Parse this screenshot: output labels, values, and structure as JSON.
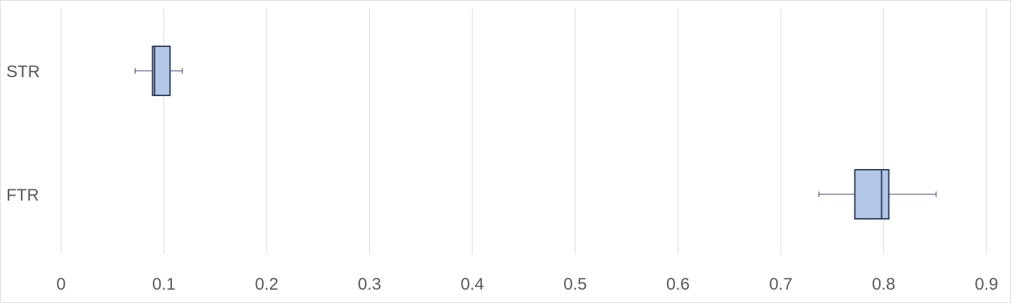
{
  "chart_data": {
    "type": "boxplot",
    "orientation": "horizontal",
    "title": "",
    "xlabel": "",
    "ylabel": "",
    "xlim": [
      0,
      0.9
    ],
    "x_ticks": [
      "0",
      "0.1",
      "0.2",
      "0.3",
      "0.4",
      "0.5",
      "0.6",
      "0.7",
      "0.8",
      "0.9"
    ],
    "grid": "vertical",
    "legend": "none",
    "colors": {
      "box_fill": "#b4c7e7",
      "box_stroke": "#2f3f5f",
      "grid": "#d9d9d9",
      "text": "#595959"
    },
    "categories": [
      "STR",
      "FTR"
    ],
    "boxes": [
      {
        "category": "STR",
        "min": 0.072,
        "q1": 0.089,
        "median": 0.091,
        "q3": 0.106,
        "max": 0.118
      },
      {
        "category": "FTR",
        "min": 0.737,
        "q1": 0.772,
        "median": 0.798,
        "q3": 0.805,
        "max": 0.851
      }
    ]
  }
}
